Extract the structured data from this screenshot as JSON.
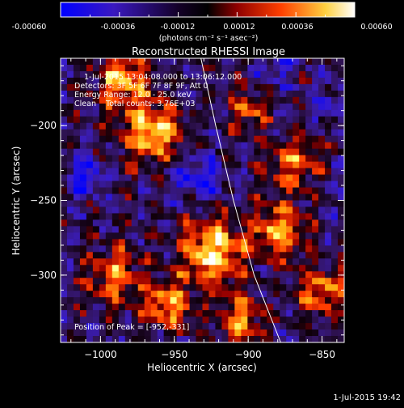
{
  "colorbar": {
    "ticks": [
      "-0.00060",
      "-0.00036",
      "-0.00012",
      "0.00012",
      "0.00036",
      "0.00060"
    ],
    "unit_label": "(photons cm⁻² s⁻¹ asec⁻²)",
    "range": [
      -0.0006,
      0.0006
    ],
    "colors": [
      "#0000ff",
      "#4010a0",
      "#100010",
      "#a00000",
      "#ff5000",
      "#ffff80",
      "#ffffff"
    ]
  },
  "chart_data": {
    "type": "heatmap",
    "title": "Reconstructed RHESSI Image",
    "xlabel": "Heliocentric X (arcsec)",
    "ylabel": "Heliocentric Y (arcsec)",
    "xlim": [
      -1027,
      -835
    ],
    "ylim": [
      -345,
      -155
    ],
    "x_ticks": [
      -1000,
      -950,
      -900,
      -850
    ],
    "x_tick_labels": [
      "−1000",
      "−950",
      "−900",
      "−850"
    ],
    "y_ticks": [
      -300,
      -250,
      -200
    ],
    "y_tick_labels": [
      "−300",
      "−250",
      "−200"
    ],
    "limb_curve": [
      [
        -932,
        -155
      ],
      [
        -922,
        -200
      ],
      [
        -910,
        -250
      ],
      [
        -896,
        -300
      ],
      [
        -878,
        -345
      ]
    ],
    "annotations": [
      "1-Jul-2015 13:04:08.000 to 13:06:12.000",
      "Detectors: 3F 5F 6F 7F 8F 9F, Att 0",
      "Energy Range: 12.0 - 25.0 keV",
      "Clean    Total counts: 3.76E+03"
    ],
    "peak_label": "Position of Peak = [-952,-331]",
    "peak": [
      -952,
      -331
    ]
  },
  "footer": {
    "date": "1-Jul-2015 19:42"
  }
}
